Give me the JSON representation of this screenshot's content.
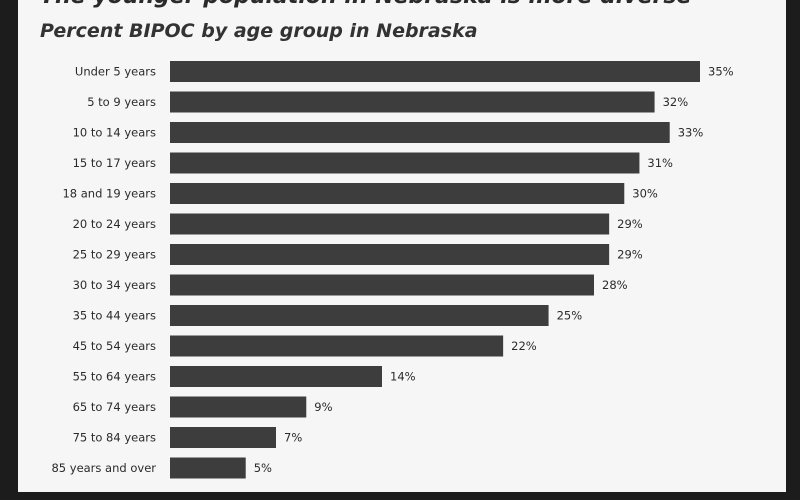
{
  "chart_data": {
    "type": "bar",
    "orientation": "horizontal",
    "title": "The younger population in Nebraska is more diverse",
    "subtitle": "Percent BIPOC by age group in Nebraska",
    "categories": [
      "Under 5 years",
      "5 to 9 years",
      "10 to 14 years",
      "15 to 17 years",
      "18 and 19 years",
      "20 to 24 years",
      "25 to 29 years",
      "30 to 34 years",
      "35 to 44 years",
      "45 to 54 years",
      "55 to 64 years",
      "65 to 74 years",
      "75 to 84 years",
      "85 years and over"
    ],
    "values": [
      35,
      32,
      33,
      31,
      30,
      29,
      29,
      28,
      25,
      22,
      14,
      9,
      7,
      5
    ],
    "value_labels": [
      "35%",
      "32%",
      "33%",
      "31%",
      "30%",
      "29%",
      "29%",
      "28%",
      "25%",
      "22%",
      "14%",
      "9%",
      "7%",
      "5%"
    ],
    "xlim": [
      0,
      35
    ],
    "grid": false,
    "bar_color": "#3d3d3d"
  }
}
